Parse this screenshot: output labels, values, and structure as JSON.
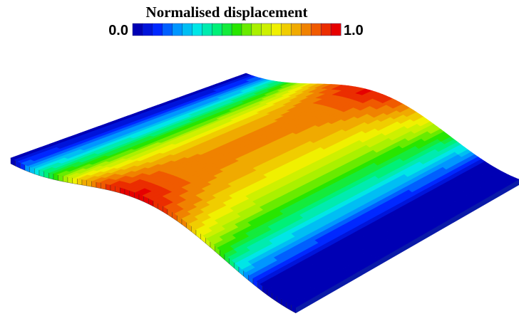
{
  "legend": {
    "title": "Normalised displacement",
    "min_label": "0.0",
    "max_label": "1.0"
  }
}
